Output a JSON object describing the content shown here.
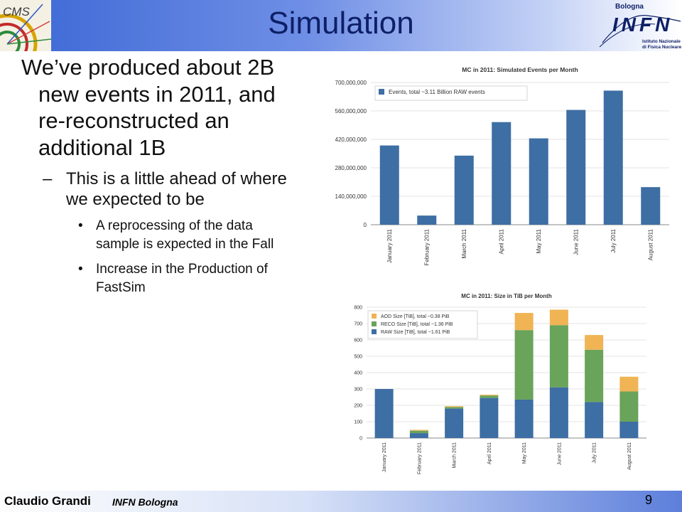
{
  "slide": {
    "title": "Simulation",
    "logo_left": "CMS",
    "logo_right": {
      "city": "Bologna",
      "acronym": "INFN",
      "line1": "Istituto Nazionale",
      "line2": "di Fisica Nucleare"
    },
    "main_bullet": "We’ve produced about 2B new events in 2011, and re-reconstructed an additional 1B",
    "sub_bullet_marker": "–",
    "sub_bullet": "This is a little ahead of where we expected to be",
    "sub_sub_marker": "•",
    "sub_sub_bullets": [
      "A reprocessing of the data sample is expected in the Fall",
      "Increase in the Production of FastSim"
    ],
    "footer": {
      "author": "Claudio Grandi",
      "affiliation": "INFN Bologna",
      "page": "9"
    }
  },
  "chart_data": [
    {
      "type": "bar",
      "title": "MC in 2011: Simulated Events per Month",
      "categories": [
        "January 2011",
        "February 2011",
        "March 2011",
        "April 2011",
        "May 2011",
        "June 2011",
        "July 2011",
        "August 2011"
      ],
      "series": [
        {
          "name": "Events, total ~3.11 Billion RAW events",
          "values": [
            390000000,
            45000000,
            340000000,
            505000000,
            425000000,
            565000000,
            660000000,
            185000000
          ],
          "color": "#3d6ea4"
        }
      ],
      "ylim": [
        0,
        700000000
      ],
      "yticks": [
        0,
        140000000,
        280000000,
        420000000,
        560000000,
        700000000
      ],
      "ytick_labels": [
        "0",
        "140,000,000",
        "280,000,000",
        "420,000,000",
        "560,000,000",
        "700,000,000"
      ],
      "grid": true,
      "legend": "top-left"
    },
    {
      "type": "bar",
      "stacked": true,
      "title": "MC in 2011: Size in TiB per Month",
      "categories": [
        "January 2011",
        "February 2011",
        "March 2011",
        "April 2011",
        "May 2011",
        "June 2011",
        "July 2011",
        "August 2011"
      ],
      "series": [
        {
          "name": "RAW Size   [TiB], total ~1.61 PiB",
          "values": [
            300,
            30,
            180,
            245,
            235,
            310,
            220,
            100
          ],
          "color": "#3d6ea4"
        },
        {
          "name": "RECO Size  [TiB], total ~1.36 PiB",
          "values": [
            0,
            15,
            10,
            15,
            425,
            380,
            320,
            185
          ],
          "color": "#6aa35a"
        },
        {
          "name": "AOD Size   [TiB], total ~0.38 PiB",
          "values": [
            0,
            5,
            5,
            5,
            105,
            95,
            90,
            90
          ],
          "color": "#f0b455"
        }
      ],
      "ylim": [
        0,
        800
      ],
      "yticks": [
        0,
        100,
        200,
        300,
        400,
        500,
        600,
        700,
        800
      ],
      "ytick_labels": [
        "0",
        "100",
        "200",
        "300",
        "400",
        "500",
        "600",
        "700",
        "800"
      ],
      "grid": true,
      "legend": "top-left"
    }
  ]
}
